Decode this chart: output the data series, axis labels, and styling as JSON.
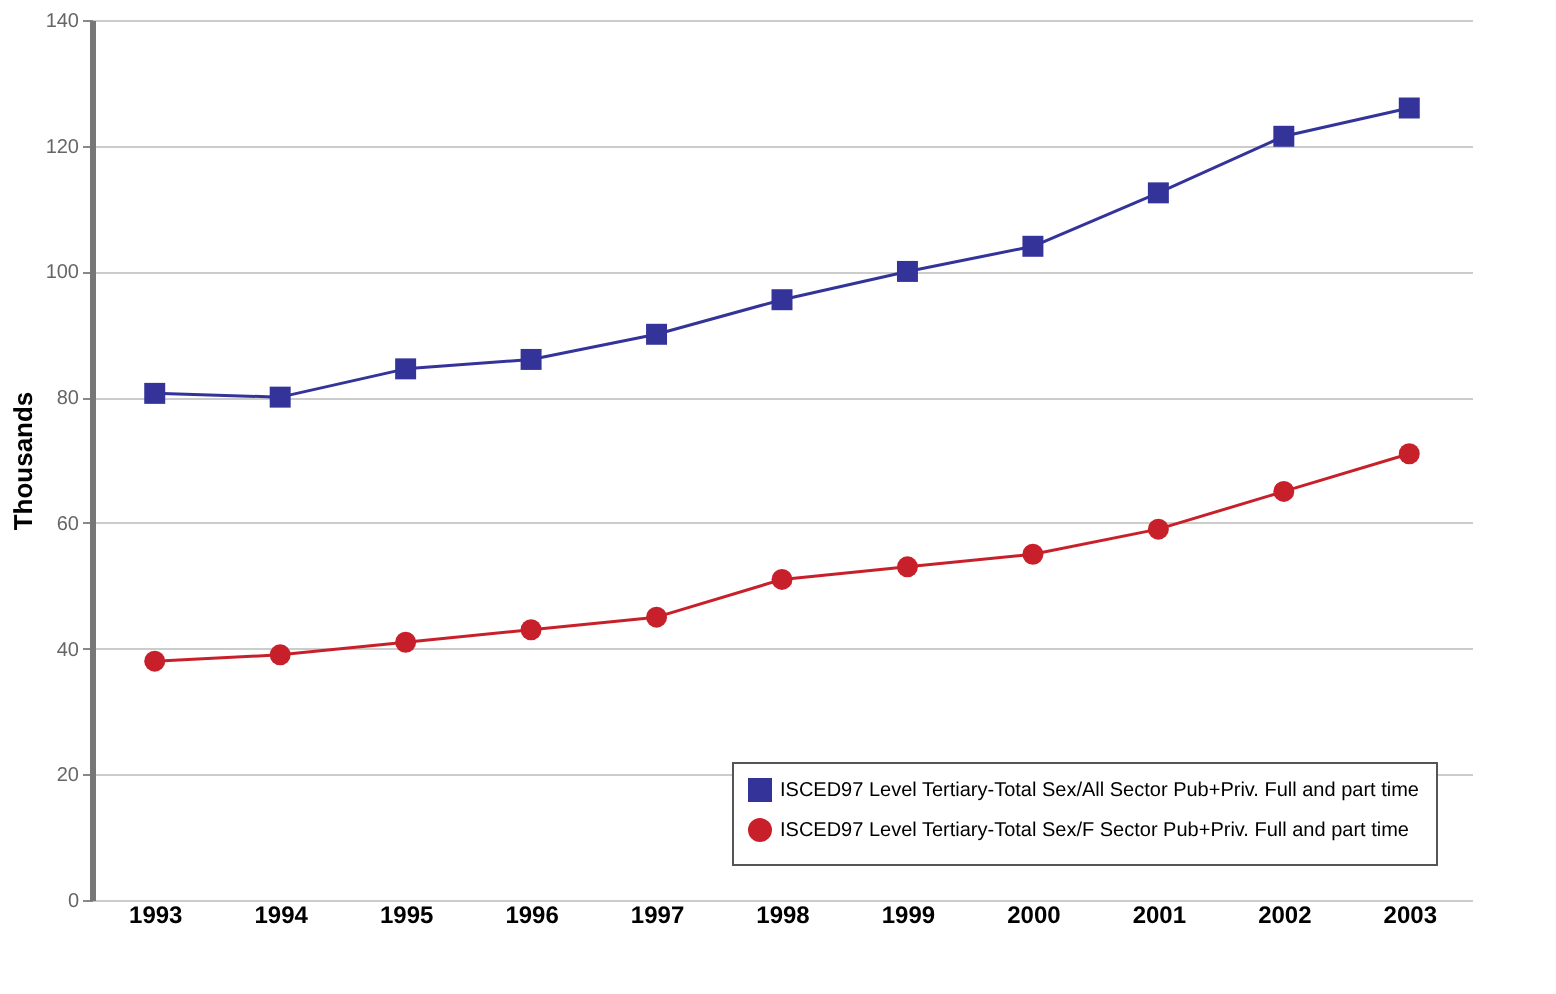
{
  "chart_data": {
    "type": "line",
    "ylabel": "Thousands",
    "categories": [
      "1993",
      "1994",
      "1995",
      "1996",
      "1997",
      "1998",
      "1999",
      "2000",
      "2001",
      "2002",
      "2003"
    ],
    "series": [
      {
        "name": "ISCED97 Level Tertiary-Total Sex/All Sector Pub+Priv. Full and part time",
        "color": "#33339a",
        "marker": "square",
        "values": [
          80.6,
          80,
          84.5,
          86,
          90,
          95.5,
          100,
          104,
          112.5,
          121.5,
          126
        ]
      },
      {
        "name": "ISCED97 Level Tertiary-Total Sex/F Sector Pub+Priv. Full and part time",
        "color": "#c8202a",
        "marker": "circle",
        "values": [
          38,
          39,
          41,
          43,
          45,
          51,
          53,
          55,
          59,
          65,
          71
        ]
      }
    ],
    "ylim": [
      0,
      140
    ],
    "yticks": [
      0,
      20,
      40,
      60,
      80,
      100,
      120,
      140
    ],
    "grid": "y",
    "legend": "bottom right",
    "line_style": "solid"
  }
}
